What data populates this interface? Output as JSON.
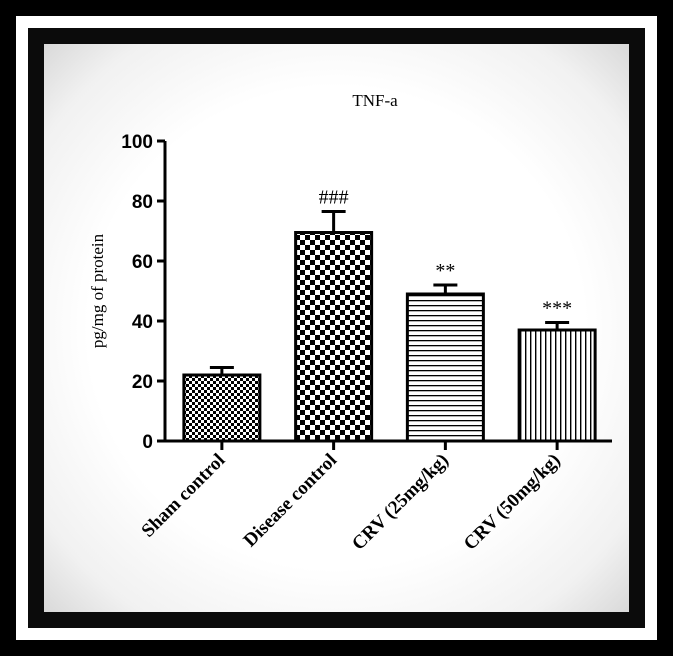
{
  "chart_data": {
    "type": "bar",
    "title": "TNF-a",
    "xlabel": "",
    "ylabel": "pg/mg of protein",
    "ylim": [
      0,
      100
    ],
    "yticks": [
      "0",
      "20",
      "40",
      "60",
      "80",
      "100"
    ],
    "categories": [
      "Sham control",
      "Disease control",
      "CRV (25mg/kg)",
      "CRV (50mg/kg)"
    ],
    "values": [
      22,
      69.5,
      49,
      37
    ],
    "errors": [
      2.5,
      7,
      3,
      2.5
    ],
    "annotations": [
      "",
      "###",
      "**",
      "***"
    ],
    "patterns": [
      "checker-small",
      "checker-large",
      "horizontal-lines",
      "vertical-lines"
    ],
    "grid": false,
    "legend": "none"
  }
}
